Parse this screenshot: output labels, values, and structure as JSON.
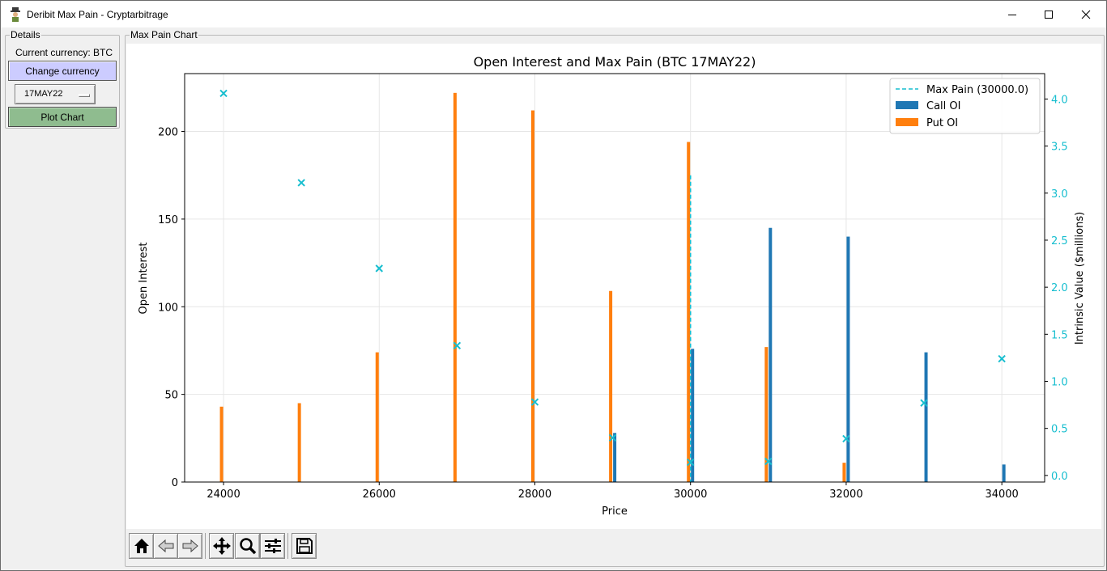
{
  "window": {
    "title": "Deribit Max Pain - Cryptarbitrage"
  },
  "details": {
    "group_label": "Details",
    "currency_label": "Current currency: BTC",
    "change_button": "Change currency",
    "expiry_selected": "17MAY22",
    "plot_button": "Plot Chart"
  },
  "chart_panel": {
    "group_label": "Max Pain Chart"
  },
  "toolbar": {
    "icons": [
      "home-icon",
      "back-icon",
      "forward-icon",
      "pan-icon",
      "zoom-icon",
      "configure-icon",
      "save-icon"
    ]
  },
  "colors": {
    "call": "#1f77b4",
    "put": "#ff7f0e",
    "intrinsic": "#17becf",
    "change_button_bg": "#ccccff",
    "plot_button_bg": "#8fbc8f"
  },
  "chart_data": {
    "type": "bar",
    "title": "Open Interest and Max Pain (BTC 17MAY22)",
    "xlabel": "Price",
    "ylabel": "Open Interest",
    "y2label": "Intrinsic Value ($millions)",
    "xlim": [
      23500,
      34550
    ],
    "ylim": [
      0,
      233
    ],
    "y2lim": [
      -0.07,
      4.27
    ],
    "xticks": [
      24000,
      26000,
      28000,
      30000,
      32000,
      34000
    ],
    "yticks": [
      0,
      50,
      100,
      150,
      200
    ],
    "y2ticks": [
      0.0,
      0.5,
      1.0,
      1.5,
      2.0,
      2.5,
      3.0,
      3.5,
      4.0
    ],
    "grid": true,
    "legend_position": "top-right",
    "strikes": [
      24000,
      25000,
      26000,
      27000,
      28000,
      29000,
      30000,
      31000,
      32000,
      33000,
      34000
    ],
    "series": [
      {
        "name": "Call OI",
        "values": [
          0,
          0,
          0,
          0,
          0,
          28,
          76,
          145,
          140,
          74,
          10
        ]
      },
      {
        "name": "Put OI",
        "values": [
          43,
          45,
          74,
          222,
          212,
          109,
          194,
          77,
          11,
          0,
          0
        ]
      }
    ],
    "intrinsic_value": [
      4.06,
      3.11,
      2.2,
      1.38,
      0.78,
      0.4,
      0.14,
      0.15,
      0.39,
      0.77,
      1.24
    ],
    "max_pain": {
      "label": "Max Pain (30000.0)",
      "price": 30000.0,
      "oi_top": 175
    }
  }
}
